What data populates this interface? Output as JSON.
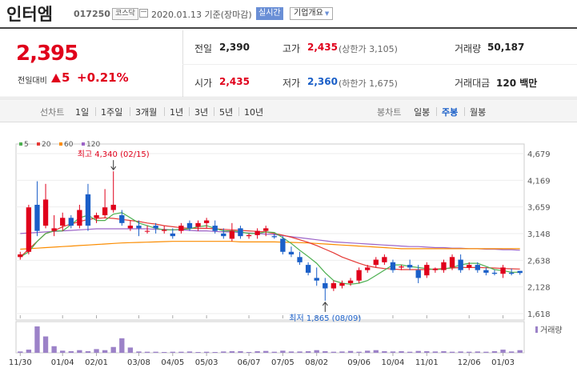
{
  "header": {
    "title": "인터엠",
    "code": "017250",
    "market": "코스닥",
    "date_text": "2020.01.13 기준(장마감)",
    "realtime": "실시간",
    "company_btn": "기업개요"
  },
  "price": {
    "current": "2,395",
    "change_label": "전일대비",
    "change_value": "5",
    "change_pct": "+0.21%"
  },
  "stats": {
    "prev_label": "전일",
    "prev_value": "2,390",
    "high_label": "고가",
    "high_value": "2,435",
    "high_sub": "(상한가 3,105)",
    "volume_label": "거래량",
    "volume_value": "50,187",
    "open_label": "시가",
    "open_value": "2,435",
    "low_label": "저가",
    "low_value": "2,360",
    "low_sub": "(하한가 1,675)",
    "amount_label": "거래대금",
    "amount_value": "120 백만"
  },
  "tabs": {
    "line_label": "선차트",
    "line_items": [
      "1일",
      "1주일",
      "3개월",
      "1년",
      "3년",
      "5년",
      "10년"
    ],
    "candle_label": "봉차트",
    "candle_items": [
      "일봉",
      "주봉",
      "월봉"
    ],
    "candle_active": "주봉"
  },
  "colors": {
    "up": "#e0001b",
    "down": "#1a5fc8",
    "ma5": "#4caf50",
    "ma20": "#e53935",
    "ma60": "#fb8c00",
    "ma120": "#9c64c8",
    "volume": "#9c82c8"
  },
  "chart_data": {
    "type": "candlestick",
    "legend": [
      {
        "name": "5",
        "color": "#4caf50"
      },
      {
        "name": "20",
        "color": "#e53935"
      },
      {
        "name": "60",
        "color": "#fb8c00"
      },
      {
        "name": "120",
        "color": "#9c64c8"
      }
    ],
    "volume_label": "거래량",
    "y_ticks": [
      1618,
      2128,
      2638,
      3148,
      3659,
      4169,
      4679
    ],
    "ylim": [
      1618,
      4679
    ],
    "x_ticks": [
      "11/30",
      "01/04",
      "02/01",
      "03/08",
      "04/05",
      "05/03",
      "06/07",
      "07/05",
      "08/02",
      "09/06",
      "10/04",
      "11/01",
      "12/06",
      "01/03"
    ],
    "x_tick_index": [
      0,
      5,
      9,
      14,
      18,
      22,
      27,
      31,
      35,
      40,
      44,
      48,
      53,
      57
    ],
    "annotations": [
      {
        "text": "최고 4,340 (02/15)",
        "index": 11,
        "value": 4340,
        "pos": "above"
      },
      {
        "text": "최저 1,865 (08/09)",
        "index": 36,
        "value": 1865,
        "pos": "below"
      }
    ],
    "candles": [
      [
        2700,
        2800,
        2650,
        2750
      ],
      [
        2800,
        3700,
        2750,
        3650
      ],
      [
        3700,
        4150,
        3100,
        3200
      ],
      [
        3300,
        4100,
        3250,
        3800
      ],
      [
        3200,
        3500,
        3100,
        3250
      ],
      [
        3300,
        3550,
        3200,
        3450
      ],
      [
        3450,
        3500,
        3250,
        3300
      ],
      [
        3300,
        3700,
        3250,
        3600
      ],
      [
        3900,
        4100,
        3200,
        3300
      ],
      [
        3450,
        3550,
        3350,
        3500
      ],
      [
        3500,
        4000,
        3450,
        3650
      ],
      [
        3600,
        4340,
        3550,
        3700
      ],
      [
        3500,
        3600,
        3300,
        3350
      ],
      [
        3250,
        3400,
        3200,
        3300
      ],
      [
        3300,
        3400,
        3100,
        3250
      ],
      [
        3200,
        3300,
        3150,
        3200
      ],
      [
        3300,
        3350,
        3150,
        3250
      ],
      [
        3200,
        3300,
        3150,
        3220
      ],
      [
        3150,
        3250,
        3050,
        3100
      ],
      [
        3200,
        3350,
        3150,
        3300
      ],
      [
        3350,
        3400,
        3200,
        3250
      ],
      [
        3280,
        3400,
        3200,
        3350
      ],
      [
        3350,
        3450,
        3250,
        3400
      ],
      [
        3300,
        3400,
        3150,
        3200
      ],
      [
        3150,
        3250,
        3050,
        3100
      ],
      [
        3050,
        3350,
        3000,
        3200
      ],
      [
        3250,
        3300,
        3050,
        3100
      ],
      [
        3100,
        3150,
        3050,
        3120
      ],
      [
        3120,
        3250,
        3050,
        3200
      ],
      [
        3200,
        3300,
        3100,
        3250
      ],
      [
        3100,
        3150,
        3050,
        3080
      ],
      [
        3050,
        3100,
        2750,
        2800
      ],
      [
        2800,
        2900,
        2700,
        2750
      ],
      [
        2700,
        2800,
        2550,
        2600
      ],
      [
        2550,
        2600,
        2350,
        2400
      ],
      [
        2300,
        2500,
        2150,
        2250
      ],
      [
        2200,
        2300,
        1865,
        2100
      ],
      [
        2100,
        2250,
        2050,
        2200
      ],
      [
        2150,
        2250,
        2100,
        2200
      ],
      [
        2200,
        2300,
        2150,
        2250
      ],
      [
        2250,
        2500,
        2200,
        2450
      ],
      [
        2450,
        2550,
        2400,
        2500
      ],
      [
        2550,
        2700,
        2500,
        2650
      ],
      [
        2600,
        2750,
        2550,
        2700
      ],
      [
        2600,
        2650,
        2400,
        2450
      ],
      [
        2500,
        2550,
        2450,
        2520
      ],
      [
        2550,
        2650,
        2450,
        2500
      ],
      [
        2450,
        2550,
        2200,
        2300
      ],
      [
        2350,
        2600,
        2300,
        2550
      ],
      [
        2450,
        2500,
        2400,
        2480
      ],
      [
        2450,
        2650,
        2400,
        2600
      ],
      [
        2500,
        2750,
        2450,
        2700
      ],
      [
        2650,
        2750,
        2400,
        2450
      ],
      [
        2500,
        2600,
        2450,
        2550
      ],
      [
        2550,
        2600,
        2400,
        2450
      ],
      [
        2450,
        2500,
        2350,
        2400
      ],
      [
        2400,
        2450,
        2350,
        2380
      ],
      [
        2380,
        2550,
        2300,
        2500
      ],
      [
        2400,
        2480,
        2350,
        2380
      ],
      [
        2435,
        2435,
        2360,
        2395
      ]
    ],
    "volume": [
      0.05,
      0.12,
      1.0,
      0.62,
      0.25,
      0.08,
      0.06,
      0.1,
      0.06,
      0.14,
      0.1,
      0.22,
      0.55,
      0.2,
      0.05,
      0.04,
      0.04,
      0.03,
      0.04,
      0.04,
      0.05,
      0.03,
      0.04,
      0.03,
      0.05,
      0.06,
      0.06,
      0.03,
      0.06,
      0.07,
      0.04,
      0.08,
      0.05,
      0.05,
      0.06,
      0.1,
      0.06,
      0.04,
      0.05,
      0.07,
      0.04,
      0.08,
      0.1,
      0.06,
      0.05,
      0.06,
      0.04,
      0.07,
      0.06,
      0.05,
      0.06,
      0.04,
      0.05,
      0.04,
      0.05,
      0.04,
      0.06,
      0.12,
      0.05,
      0.1
    ],
    "ma5": [
      2700,
      2800,
      3000,
      3150,
      3200,
      3200,
      3320,
      3450,
      3500,
      3400,
      3400,
      3520,
      3550,
      3450,
      3350,
      3300,
      3250,
      3220,
      3220,
      3230,
      3240,
      3280,
      3300,
      3250,
      3200,
      3200,
      3180,
      3150,
      3150,
      3180,
      3170,
      3070,
      2960,
      2830,
      2710,
      2580,
      2400,
      2250,
      2200,
      2180,
      2200,
      2250,
      2350,
      2450,
      2550,
      2550,
      2520,
      2500,
      2480,
      2460,
      2470,
      2500,
      2550,
      2580,
      2580,
      2520,
      2460,
      2440,
      2410,
      2410
    ],
    "ma20": [
      2700,
      2850,
      3000,
      3150,
      3200,
      3280,
      3330,
      3380,
      3420,
      3440,
      3450,
      3440,
      3420,
      3400,
      3380,
      3350,
      3330,
      3300,
      3280,
      3260,
      3250,
      3250,
      3250,
      3240,
      3230,
      3220,
      3210,
      3200,
      3190,
      3180,
      3150,
      3120,
      3080,
      3030,
      2980,
      2920,
      2850,
      2780,
      2700,
      2640,
      2580,
      2530,
      2500,
      2480,
      2470,
      2460,
      2460,
      2460,
      2460,
      2470,
      2480,
      2490,
      2500,
      2500,
      2500,
      2495,
      2490,
      2480,
      2475,
      2470
    ],
    "ma60": [
      2850,
      2860,
      2870,
      2880,
      2890,
      2900,
      2910,
      2920,
      2930,
      2940,
      2950,
      2960,
      2970,
      2975,
      2980,
      2985,
      2990,
      2995,
      3000,
      3000,
      3000,
      3000,
      3000,
      3000,
      3000,
      3000,
      2990,
      2990,
      2990,
      2990,
      2990,
      2985,
      2980,
      2975,
      2970,
      2960,
      2950,
      2940,
      2930,
      2920,
      2910,
      2900,
      2890,
      2880,
      2870,
      2860,
      2860,
      2860,
      2860,
      2860,
      2860,
      2860,
      2860,
      2860,
      2860,
      2860,
      2860,
      2860,
      2860,
      2860
    ],
    "ma120": [
      3150,
      3160,
      3170,
      3180,
      3190,
      3200,
      3210,
      3220,
      3230,
      3240,
      3240,
      3240,
      3240,
      3240,
      3240,
      3240,
      3230,
      3230,
      3220,
      3220,
      3210,
      3200,
      3200,
      3190,
      3180,
      3180,
      3170,
      3160,
      3150,
      3140,
      3130,
      3110,
      3090,
      3070,
      3050,
      3030,
      3010,
      2990,
      2980,
      2970,
      2960,
      2950,
      2940,
      2930,
      2920,
      2910,
      2900,
      2900,
      2890,
      2880,
      2880,
      2870,
      2870,
      2860,
      2860,
      2850,
      2850,
      2840,
      2840,
      2830
    ]
  }
}
